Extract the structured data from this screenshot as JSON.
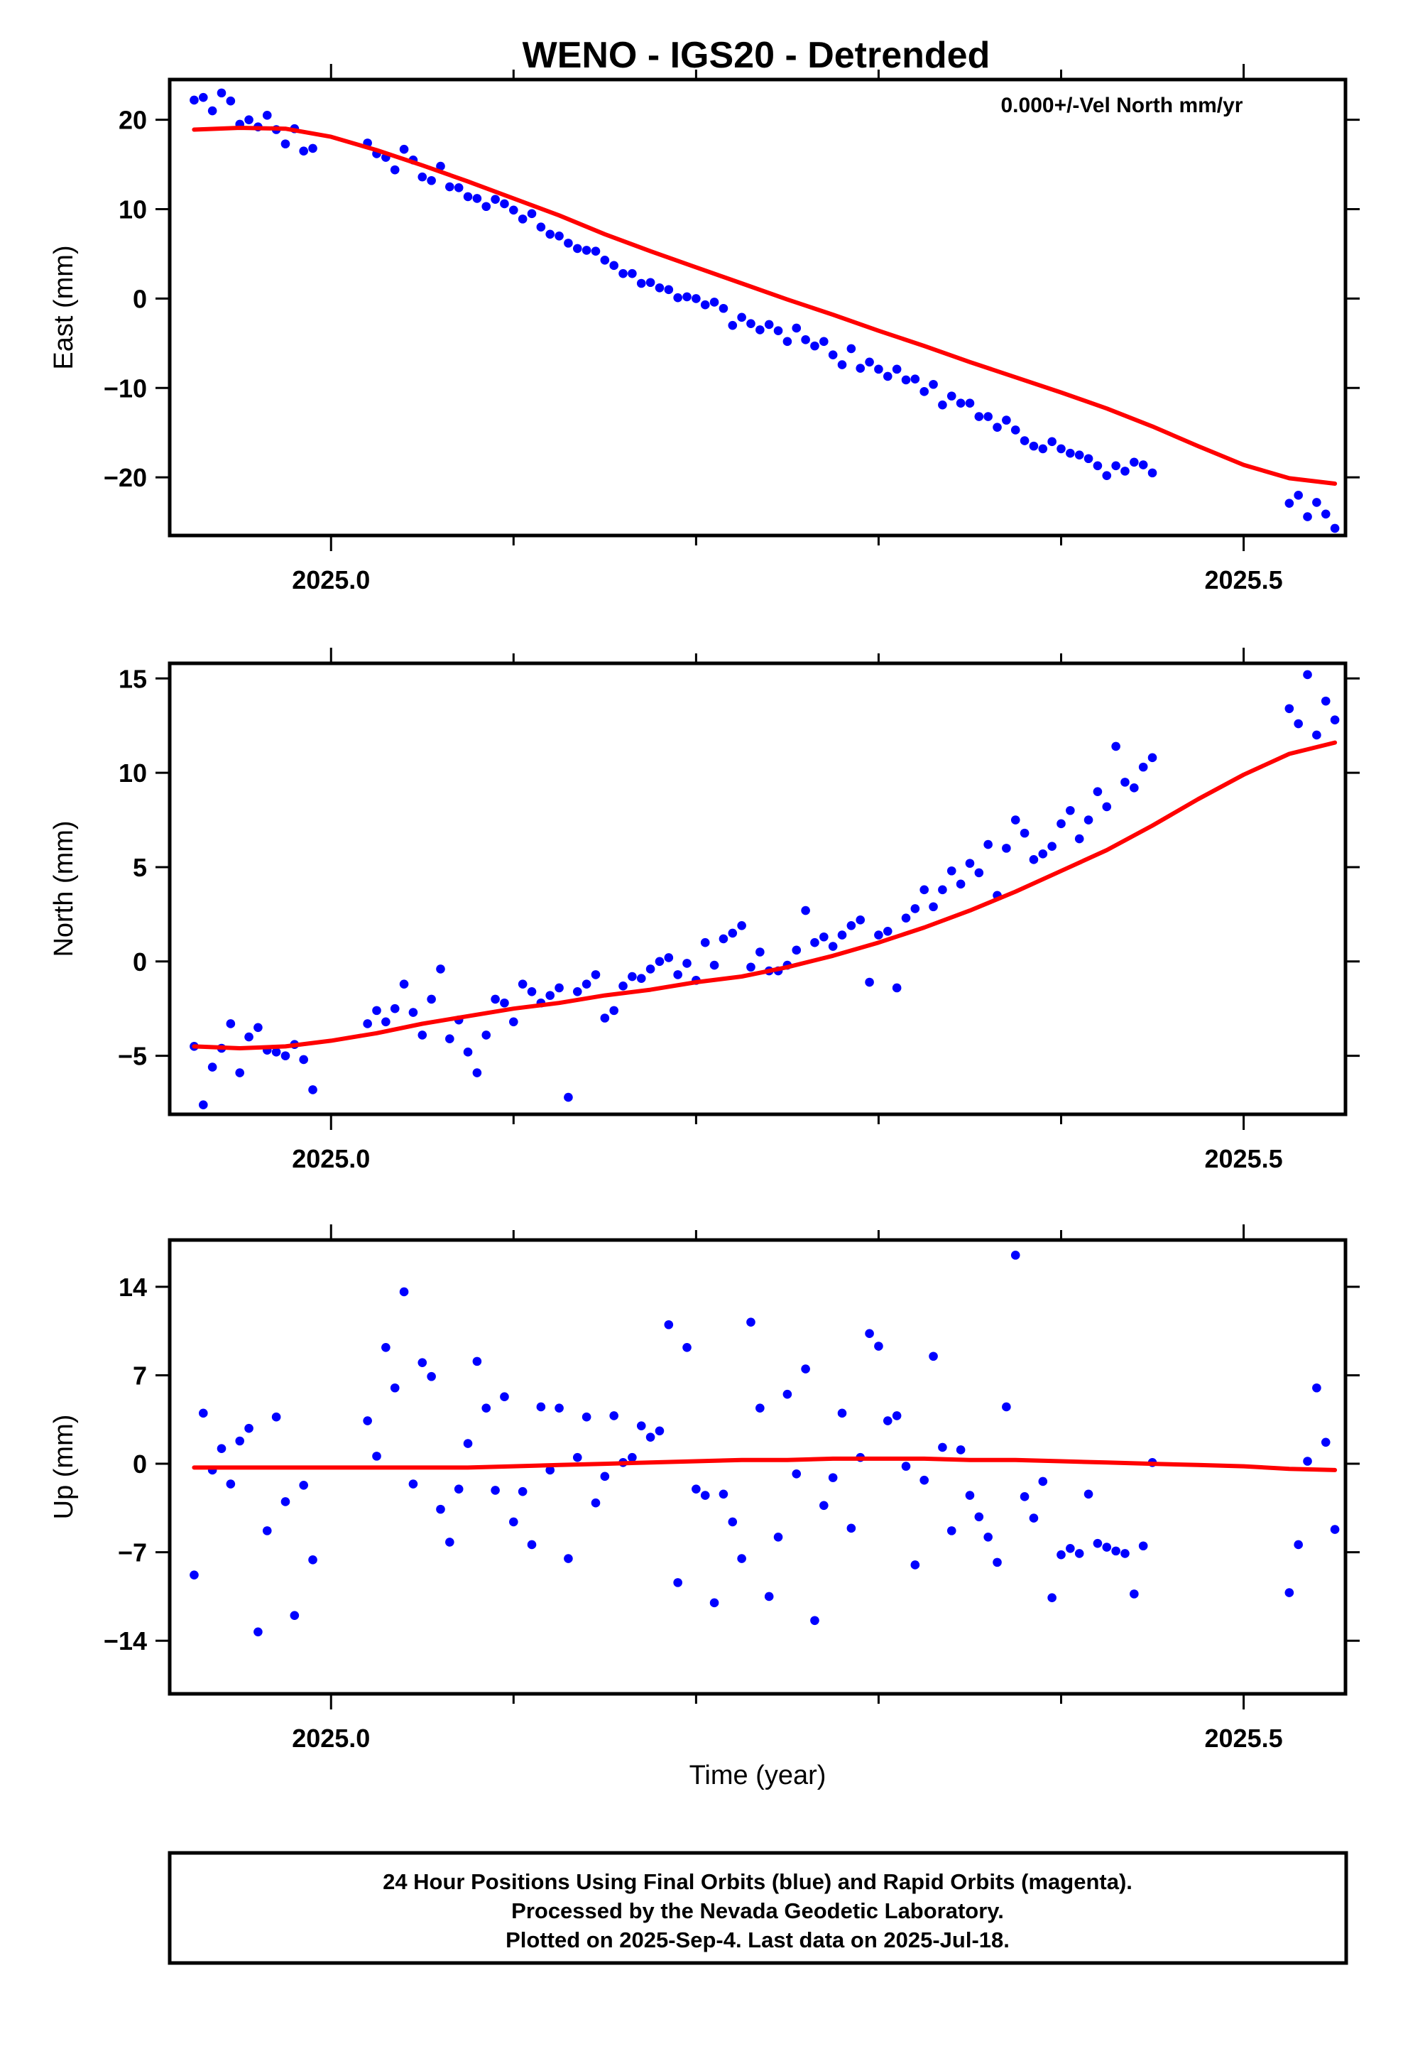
{
  "title": "WENO - IGS20 - Detrended",
  "footer": {
    "lines": [
      "24 Hour Positions Using Final Orbits (blue) and Rapid Orbits (magenta).",
      "Processed by the Nevada Geodetic Laboratory.",
      "Plotted on 2025-Sep-4. Last data on 2025-Jul-18."
    ]
  },
  "colors": {
    "points": "#0000ff",
    "fit": "#ff0000",
    "frame": "#000000"
  },
  "chart_data": [
    {
      "type": "scatter",
      "title": "",
      "xlabel": "",
      "ylabel": "East (mm)",
      "annotation": "0.000+/-Vel North mm/yr",
      "xlim": [
        2024.9116,
        2025.5558
      ],
      "ylim": [
        -26.5,
        24.5
      ],
      "xticks": [
        2025.0,
        2025.5
      ],
      "xtick_labels": [
        "2025.0",
        "2025.5"
      ],
      "yticks": [
        20,
        10,
        0,
        -10,
        -20
      ],
      "ytick_labels": [
        "20",
        "10",
        "0",
        "−10",
        "−20"
      ],
      "series": [
        {
          "kind": "points",
          "x": [
            2024.925,
            2024.93,
            2024.935,
            2024.94,
            2024.945,
            2024.95,
            2024.955,
            2024.96,
            2024.965,
            2024.97,
            2024.975,
            2024.98,
            2024.985,
            2024.99,
            2025.02,
            2025.025,
            2025.03,
            2025.035,
            2025.04,
            2025.045,
            2025.05,
            2025.055,
            2025.06,
            2025.065,
            2025.07,
            2025.075,
            2025.08,
            2025.085,
            2025.09,
            2025.095,
            2025.1,
            2025.105,
            2025.11,
            2025.115,
            2025.12,
            2025.125,
            2025.13,
            2025.135,
            2025.14,
            2025.145,
            2025.15,
            2025.155,
            2025.16,
            2025.165,
            2025.17,
            2025.175,
            2025.18,
            2025.185,
            2025.19,
            2025.195,
            2025.2,
            2025.205,
            2025.21,
            2025.215,
            2025.22,
            2025.225,
            2025.23,
            2025.235,
            2025.24,
            2025.245,
            2025.25,
            2025.255,
            2025.26,
            2025.265,
            2025.27,
            2025.275,
            2025.28,
            2025.285,
            2025.29,
            2025.295,
            2025.3,
            2025.305,
            2025.31,
            2025.315,
            2025.32,
            2025.325,
            2025.33,
            2025.335,
            2025.34,
            2025.345,
            2025.35,
            2025.355,
            2025.36,
            2025.365,
            2025.37,
            2025.375,
            2025.38,
            2025.385,
            2025.39,
            2025.395,
            2025.4,
            2025.405,
            2025.41,
            2025.415,
            2025.42,
            2025.425,
            2025.43,
            2025.435,
            2025.44,
            2025.445,
            2025.45,
            2025.525,
            2025.53,
            2025.535,
            2025.54,
            2025.545,
            2025.55
          ],
          "y": [
            22.2,
            22.5,
            21.0,
            23.0,
            22.1,
            19.5,
            20.0,
            19.2,
            20.5,
            18.9,
            17.3,
            19.0,
            16.5,
            16.8,
            17.4,
            16.2,
            15.8,
            14.4,
            16.7,
            15.5,
            13.6,
            13.2,
            14.8,
            12.5,
            12.4,
            11.4,
            11.2,
            10.3,
            11.1,
            10.6,
            9.9,
            8.9,
            9.5,
            8.0,
            7.2,
            7.0,
            6.2,
            5.6,
            5.4,
            5.3,
            4.3,
            3.7,
            2.8,
            2.8,
            1.7,
            1.8,
            1.2,
            1.0,
            0.1,
            0.2,
            0.0,
            -0.7,
            -0.4,
            -1.1,
            -3.0,
            -2.1,
            -2.8,
            -3.5,
            -2.9,
            -3.6,
            -4.8,
            -3.3,
            -4.6,
            -5.3,
            -4.8,
            -6.3,
            -7.4,
            -5.6,
            -7.8,
            -7.1,
            -7.9,
            -8.7,
            -7.9,
            -9.1,
            -9.0,
            -10.4,
            -9.6,
            -11.9,
            -10.9,
            -11.7,
            -11.7,
            -13.2,
            -13.2,
            -14.4,
            -13.6,
            -14.7,
            -15.9,
            -16.5,
            -16.8,
            -16.0,
            -16.8,
            -17.3,
            -17.5,
            -17.9,
            -18.7,
            -19.8,
            -18.7,
            -19.3,
            -18.3,
            -18.6,
            -19.5,
            -22.9,
            -22.0,
            -24.4,
            -22.8,
            -24.1,
            -25.7
          ]
        },
        {
          "kind": "fit",
          "x": [
            2024.925,
            2024.95,
            2024.975,
            2025.0,
            2025.025,
            2025.05,
            2025.075,
            2025.1,
            2025.125,
            2025.15,
            2025.175,
            2025.2,
            2025.225,
            2025.25,
            2025.275,
            2025.3,
            2025.325,
            2025.35,
            2025.375,
            2025.4,
            2025.425,
            2025.45,
            2025.475,
            2025.5,
            2025.525,
            2025.55
          ],
          "y": [
            18.9,
            19.1,
            19.0,
            18.1,
            16.6,
            14.9,
            13.1,
            11.2,
            9.3,
            7.2,
            5.3,
            3.5,
            1.7,
            -0.1,
            -1.8,
            -3.6,
            -5.3,
            -7.1,
            -8.8,
            -10.5,
            -12.3,
            -14.3,
            -16.5,
            -18.6,
            -20.1,
            -20.7
          ]
        }
      ]
    },
    {
      "type": "scatter",
      "title": "",
      "xlabel": "",
      "ylabel": "North (mm)",
      "xlim": [
        2024.9116,
        2025.5558
      ],
      "ylim": [
        -8.1,
        15.8
      ],
      "xticks": [
        2025.0,
        2025.5
      ],
      "xtick_labels": [
        "2025.0",
        "2025.5"
      ],
      "yticks": [
        15,
        10,
        5,
        0,
        -5
      ],
      "ytick_labels": [
        "15",
        "10",
        "5",
        "0",
        "−5"
      ],
      "series": [
        {
          "kind": "points",
          "x": [
            2024.925,
            2024.93,
            2024.935,
            2024.94,
            2024.945,
            2024.95,
            2024.955,
            2024.96,
            2024.965,
            2024.97,
            2024.975,
            2024.98,
            2024.985,
            2024.99,
            2025.02,
            2025.025,
            2025.03,
            2025.035,
            2025.04,
            2025.045,
            2025.05,
            2025.055,
            2025.06,
            2025.065,
            2025.07,
            2025.075,
            2025.08,
            2025.085,
            2025.09,
            2025.095,
            2025.1,
            2025.105,
            2025.11,
            2025.115,
            2025.12,
            2025.125,
            2025.13,
            2025.135,
            2025.14,
            2025.145,
            2025.15,
            2025.155,
            2025.16,
            2025.165,
            2025.17,
            2025.175,
            2025.18,
            2025.185,
            2025.19,
            2025.195,
            2025.2,
            2025.205,
            2025.21,
            2025.215,
            2025.22,
            2025.225,
            2025.23,
            2025.235,
            2025.24,
            2025.245,
            2025.25,
            2025.255,
            2025.26,
            2025.265,
            2025.27,
            2025.275,
            2025.28,
            2025.285,
            2025.29,
            2025.295,
            2025.3,
            2025.305,
            2025.31,
            2025.315,
            2025.32,
            2025.325,
            2025.33,
            2025.335,
            2025.34,
            2025.345,
            2025.35,
            2025.355,
            2025.36,
            2025.365,
            2025.37,
            2025.375,
            2025.38,
            2025.385,
            2025.39,
            2025.395,
            2025.4,
            2025.405,
            2025.41,
            2025.415,
            2025.42,
            2025.425,
            2025.43,
            2025.435,
            2025.44,
            2025.445,
            2025.45,
            2025.525,
            2025.53,
            2025.535,
            2025.54,
            2025.545,
            2025.55
          ],
          "y": [
            -4.5,
            -7.6,
            -5.6,
            -4.6,
            -3.3,
            -5.9,
            -4.0,
            -3.5,
            -4.7,
            -4.8,
            -5.0,
            -4.4,
            -5.2,
            -6.8,
            -3.3,
            -2.6,
            -3.2,
            -2.5,
            -1.2,
            -2.7,
            -3.9,
            -2.0,
            -0.4,
            -4.1,
            -3.1,
            -4.8,
            -5.9,
            -3.9,
            -2.0,
            -2.2,
            -3.2,
            -1.2,
            -1.6,
            -2.2,
            -1.8,
            -1.4,
            -7.2,
            -1.6,
            -1.2,
            -0.7,
            -3.0,
            -2.6,
            -1.3,
            -0.8,
            -0.9,
            -0.4,
            0.0,
            0.2,
            -0.7,
            -0.1,
            -1.0,
            1.0,
            -0.2,
            1.2,
            1.5,
            1.9,
            -0.3,
            0.5,
            -0.5,
            -0.5,
            -0.2,
            0.6,
            2.7,
            1.0,
            1.3,
            0.8,
            1.4,
            1.9,
            2.2,
            -1.1,
            1.4,
            1.6,
            -1.4,
            2.3,
            2.8,
            3.8,
            2.9,
            3.8,
            4.8,
            4.1,
            5.2,
            4.7,
            6.2,
            3.5,
            6.0,
            7.5,
            6.8,
            5.4,
            5.7,
            6.1,
            7.3,
            8.0,
            6.5,
            7.5,
            9.0,
            8.2,
            11.4,
            9.5,
            9.2,
            10.3,
            10.8,
            13.4,
            12.6,
            15.2,
            12.0,
            13.8,
            12.8
          ]
        },
        {
          "kind": "fit",
          "x": [
            2024.925,
            2024.95,
            2024.975,
            2025.0,
            2025.025,
            2025.05,
            2025.075,
            2025.1,
            2025.125,
            2025.15,
            2025.175,
            2025.2,
            2025.225,
            2025.25,
            2025.275,
            2025.3,
            2025.325,
            2025.35,
            2025.375,
            2025.4,
            2025.425,
            2025.45,
            2025.475,
            2025.5,
            2025.525,
            2025.55
          ],
          "y": [
            -4.5,
            -4.6,
            -4.5,
            -4.2,
            -3.8,
            -3.3,
            -2.9,
            -2.5,
            -2.2,
            -1.8,
            -1.5,
            -1.1,
            -0.8,
            -0.3,
            0.3,
            1.0,
            1.8,
            2.7,
            3.7,
            4.8,
            5.9,
            7.2,
            8.6,
            9.9,
            11.0,
            11.6
          ]
        }
      ]
    },
    {
      "type": "scatter",
      "title": "",
      "xlabel": "Time (year)",
      "ylabel": "Up (mm)",
      "xlim": [
        2024.9116,
        2025.5558
      ],
      "ylim": [
        -18.2,
        17.7
      ],
      "xticks": [
        2025.0,
        2025.5
      ],
      "xtick_labels": [
        "2025.0",
        "2025.5"
      ],
      "yticks": [
        14,
        7,
        0,
        -7,
        -14
      ],
      "ytick_labels": [
        "14",
        "7",
        "0",
        "−7",
        "−14"
      ],
      "series": [
        {
          "kind": "points",
          "x": [
            2024.925,
            2024.93,
            2024.935,
            2024.94,
            2024.945,
            2024.95,
            2024.955,
            2024.96,
            2024.965,
            2024.97,
            2024.975,
            2024.98,
            2024.985,
            2024.99,
            2025.02,
            2025.025,
            2025.03,
            2025.035,
            2025.04,
            2025.045,
            2025.05,
            2025.055,
            2025.06,
            2025.065,
            2025.07,
            2025.075,
            2025.08,
            2025.085,
            2025.09,
            2025.095,
            2025.1,
            2025.105,
            2025.11,
            2025.115,
            2025.12,
            2025.125,
            2025.13,
            2025.135,
            2025.14,
            2025.145,
            2025.15,
            2025.155,
            2025.16,
            2025.165,
            2025.17,
            2025.175,
            2025.18,
            2025.185,
            2025.19,
            2025.195,
            2025.2,
            2025.205,
            2025.21,
            2025.215,
            2025.22,
            2025.225,
            2025.23,
            2025.235,
            2025.24,
            2025.245,
            2025.25,
            2025.255,
            2025.26,
            2025.265,
            2025.27,
            2025.275,
            2025.28,
            2025.285,
            2025.29,
            2025.295,
            2025.3,
            2025.305,
            2025.31,
            2025.315,
            2025.32,
            2025.325,
            2025.33,
            2025.335,
            2025.34,
            2025.345,
            2025.35,
            2025.355,
            2025.36,
            2025.365,
            2025.37,
            2025.375,
            2025.38,
            2025.385,
            2025.39,
            2025.395,
            2025.4,
            2025.405,
            2025.41,
            2025.415,
            2025.42,
            2025.425,
            2025.43,
            2025.435,
            2025.44,
            2025.445,
            2025.45,
            2025.525,
            2025.53,
            2025.535,
            2025.54,
            2025.545,
            2025.55
          ],
          "y": [
            -8.8,
            4.0,
            -0.5,
            1.2,
            -1.6,
            1.8,
            2.8,
            -13.3,
            -5.3,
            3.7,
            -3.0,
            -12.0,
            -1.7,
            -7.6,
            3.4,
            0.6,
            9.2,
            6.0,
            13.6,
            -1.6,
            8.0,
            6.9,
            -3.6,
            -6.2,
            -2.0,
            1.6,
            8.1,
            4.4,
            -2.1,
            5.3,
            -4.6,
            -2.2,
            -6.4,
            4.5,
            -0.5,
            4.4,
            -7.5,
            0.5,
            3.7,
            -3.1,
            -1.0,
            3.8,
            0.1,
            0.5,
            3.0,
            2.1,
            2.6,
            11.0,
            -9.4,
            9.2,
            -2.0,
            -2.5,
            -11.0,
            -2.4,
            -4.6,
            -7.5,
            11.2,
            4.4,
            -10.5,
            -5.8,
            5.5,
            -0.8,
            7.5,
            -12.4,
            -3.3,
            -1.1,
            4.0,
            -5.1,
            0.5,
            10.3,
            9.3,
            3.4,
            3.8,
            -0.2,
            -8.0,
            -1.3,
            8.5,
            1.3,
            -5.3,
            1.1,
            -2.5,
            -4.2,
            -5.8,
            -7.8,
            4.5,
            16.5,
            -2.6,
            -4.3,
            -1.4,
            -10.6,
            -7.2,
            -6.7,
            -7.1,
            -2.4,
            -6.3,
            -6.6,
            -6.9,
            -7.1,
            -10.3,
            -6.5,
            0.1,
            -10.2,
            -6.4,
            0.2,
            6.0,
            1.7,
            -5.2
          ]
        },
        {
          "kind": "fit",
          "x": [
            2024.925,
            2024.95,
            2024.975,
            2025.0,
            2025.025,
            2025.05,
            2025.075,
            2025.1,
            2025.125,
            2025.15,
            2025.175,
            2025.2,
            2025.225,
            2025.25,
            2025.275,
            2025.3,
            2025.325,
            2025.35,
            2025.375,
            2025.4,
            2025.425,
            2025.45,
            2025.475,
            2025.5,
            2025.525,
            2025.55
          ],
          "y": [
            -0.3,
            -0.3,
            -0.3,
            -0.3,
            -0.3,
            -0.3,
            -0.3,
            -0.2,
            -0.1,
            0.0,
            0.1,
            0.2,
            0.3,
            0.3,
            0.4,
            0.4,
            0.4,
            0.3,
            0.3,
            0.2,
            0.1,
            0.0,
            -0.1,
            -0.2,
            -0.4,
            -0.5
          ]
        }
      ]
    }
  ]
}
